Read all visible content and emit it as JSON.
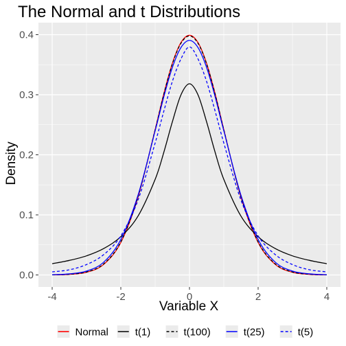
{
  "chart_data": {
    "type": "line",
    "title": "The Normal and t Distributions",
    "xlabel": "Variable X",
    "ylabel": "Density",
    "xlim": [
      -4.4,
      4.4
    ],
    "ylim": [
      -0.02,
      0.42
    ],
    "x_ticks": [
      -4,
      -2,
      0,
      2,
      4
    ],
    "y_ticks": [
      0.0,
      0.1,
      0.2,
      0.3,
      0.4
    ],
    "x_tick_labels": [
      "-4",
      "-2",
      "0",
      "2",
      "4"
    ],
    "y_tick_labels": [
      "0.0",
      "0.1",
      "0.2",
      "0.3",
      "0.4"
    ],
    "x_minor_ticks": [
      -3,
      -1,
      1,
      3
    ],
    "y_minor_ticks": [
      0.05,
      0.15,
      0.25,
      0.35
    ],
    "grid": true,
    "legend_position": "bottom",
    "background": "#ebebeb",
    "x": [
      -4,
      -3.5,
      -3,
      -2.5,
      -2,
      -1.5,
      -1,
      -0.75,
      -0.5,
      -0.25,
      0,
      0.25,
      0.5,
      0.75,
      1,
      1.5,
      2,
      2.5,
      3,
      3.5,
      4
    ],
    "series": [
      {
        "name": "Normal",
        "color": "#ff0000",
        "dash": "solid",
        "values": [
          0.0001,
          0.0009,
          0.0044,
          0.0175,
          0.054,
          0.1295,
          0.242,
          0.3011,
          0.3521,
          0.3867,
          0.3989,
          0.3867,
          0.3521,
          0.3011,
          0.242,
          0.1295,
          0.054,
          0.0175,
          0.0044,
          0.0009,
          0.0001
        ]
      },
      {
        "name": "t(1)",
        "color": "#000000",
        "dash": "solid",
        "values": [
          0.0187,
          0.0242,
          0.0318,
          0.0439,
          0.0637,
          0.0979,
          0.1592,
          0.2037,
          0.2546,
          0.2996,
          0.3183,
          0.2996,
          0.2546,
          0.2037,
          0.1592,
          0.0979,
          0.0637,
          0.0439,
          0.0318,
          0.0242,
          0.0187
        ]
      },
      {
        "name": "t(100)",
        "color": "#000000",
        "dash": "dashed",
        "values": [
          0.0002,
          0.0011,
          0.0049,
          0.0184,
          0.0551,
          0.1302,
          0.2417,
          0.3004,
          0.3511,
          0.3855,
          0.3979,
          0.3855,
          0.3511,
          0.3004,
          0.2417,
          0.1302,
          0.0551,
          0.0184,
          0.0049,
          0.0011,
          0.0002
        ]
      },
      {
        "name": "t(25)",
        "color": "#0000ff",
        "dash": "solid",
        "values": [
          0.0004,
          0.0018,
          0.0064,
          0.0212,
          0.0591,
          0.1326,
          0.24,
          0.2961,
          0.3452,
          0.3784,
          0.3904,
          0.3784,
          0.3452,
          0.2961,
          0.24,
          0.1326,
          0.0591,
          0.0212,
          0.0064,
          0.0018,
          0.0004
        ]
      },
      {
        "name": "t(5)",
        "color": "#0000ff",
        "dash": "dashed",
        "values": [
          0.0051,
          0.0086,
          0.0173,
          0.0338,
          0.0651,
          0.1245,
          0.2197,
          0.2721,
          0.3219,
          0.3594,
          0.3796,
          0.3594,
          0.3219,
          0.2721,
          0.2197,
          0.1245,
          0.0651,
          0.0338,
          0.0173,
          0.0086,
          0.0051
        ]
      }
    ]
  }
}
